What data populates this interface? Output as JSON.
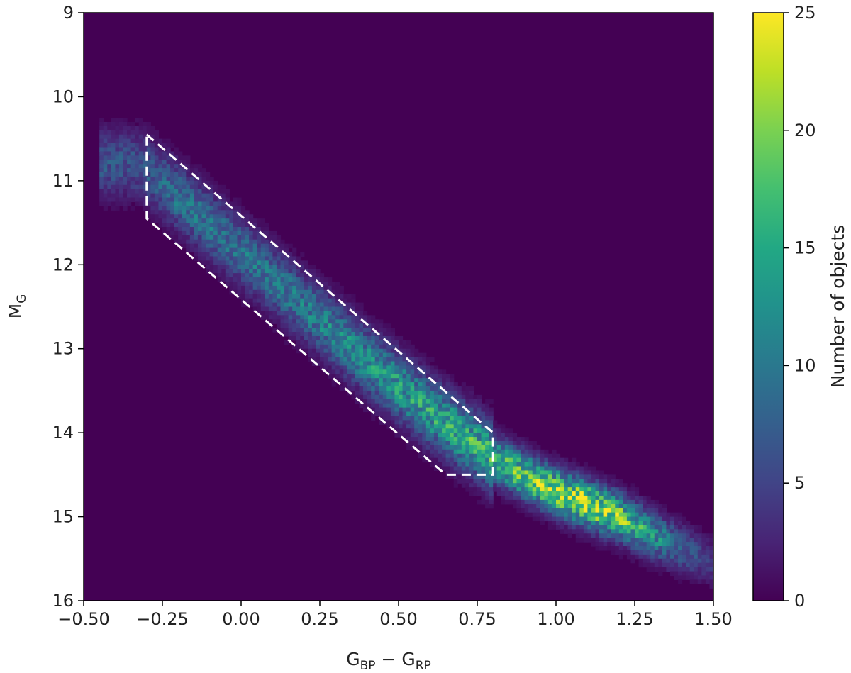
{
  "chart_data": {
    "type": "heatmap",
    "xlabel": {
      "main": "G",
      "sub1": "BP",
      "mid": " − G",
      "sub2": "RP"
    },
    "ylabel": {
      "main": "M",
      "sub": "G"
    },
    "colorbar_label": "Number of objects",
    "xlim": [
      -0.5,
      1.5
    ],
    "ylim": [
      16,
      9
    ],
    "y_inverted": true,
    "xticks": [
      -0.5,
      -0.25,
      0.0,
      0.25,
      0.5,
      0.75,
      1.0,
      1.25,
      1.5
    ],
    "xtick_labels": [
      "−0.50",
      "−0.25",
      "0.00",
      "0.25",
      "0.50",
      "0.75",
      "1.00",
      "1.25",
      "1.50"
    ],
    "yticks": [
      9,
      10,
      11,
      12,
      13,
      14,
      15,
      16
    ],
    "ytick_labels": [
      "9",
      "10",
      "11",
      "12",
      "13",
      "14",
      "15",
      "16"
    ],
    "colorbar": {
      "range": [
        0,
        25
      ],
      "ticks": [
        0,
        5,
        10,
        15,
        20,
        25
      ],
      "tick_labels": [
        "0",
        "5",
        "10",
        "15",
        "20",
        "25"
      ],
      "colormap": "viridis"
    },
    "background_color": "#440154",
    "selection_polygon": {
      "style": "white dashed",
      "color": "#ffffff",
      "points": [
        [
          -0.3,
          10.45
        ],
        [
          0.8,
          14.0
        ],
        [
          0.8,
          14.5
        ],
        [
          0.65,
          14.5
        ],
        [
          -0.3,
          11.45
        ],
        [
          -0.3,
          10.45
        ]
      ]
    },
    "density_ridge": {
      "x": [
        -0.32,
        -0.2,
        0.0,
        0.2,
        0.4,
        0.6,
        0.8,
        0.9,
        1.0,
        1.1,
        1.2,
        1.3,
        1.4,
        1.5
      ],
      "y": [
        10.8,
        11.2,
        11.85,
        12.5,
        13.15,
        13.75,
        14.3,
        14.52,
        14.7,
        14.85,
        15.0,
        15.2,
        15.38,
        15.55
      ],
      "peak_counts": [
        7,
        10,
        10,
        11,
        13,
        15,
        17,
        20,
        22,
        24,
        20,
        14,
        8,
        4
      ]
    }
  }
}
